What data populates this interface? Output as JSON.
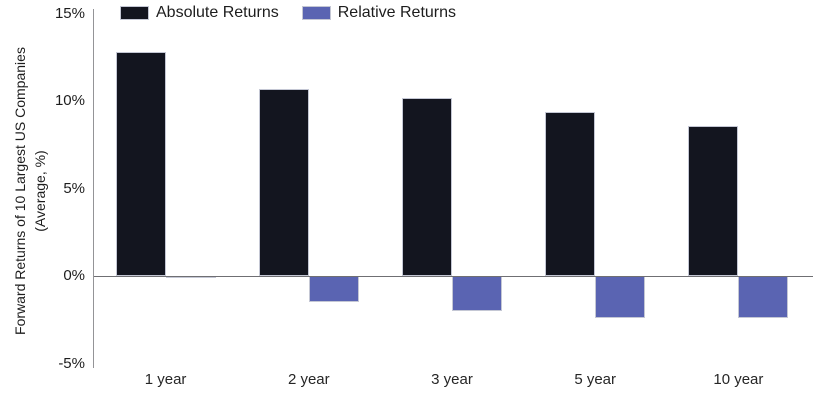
{
  "chart_data": {
    "type": "bar",
    "title": "",
    "categories": [
      "1 year",
      "2 year",
      "3 year",
      "5 year",
      "10 year"
    ],
    "series": [
      {
        "name": "Absolute Returns",
        "color": "#13151f",
        "values": [
          12.8,
          10.7,
          10.2,
          9.4,
          8.6
        ]
      },
      {
        "name": "Relative Returns",
        "color": "#5a64b2",
        "values": [
          -0.1,
          -1.5,
          -2.0,
          -2.4,
          -2.4
        ]
      }
    ],
    "xlabel": "",
    "ylabel": "Forward Returns of 10 Largest US Companies (Average, %)",
    "ylabel_lines": [
      "Forward Returns of 10 Largest US Companies",
      "(Average, %)"
    ],
    "ylim": [
      -5,
      15
    ],
    "yticks": [
      {
        "value": 15,
        "label": "15%"
      },
      {
        "value": 10,
        "label": "10%"
      },
      {
        "value": 5,
        "label": "5%"
      },
      {
        "value": 0,
        "label": "0%"
      },
      {
        "value": -5,
        "label": "-5%"
      }
    ],
    "grid": false,
    "legend_position": "top-left"
  },
  "colors": {
    "absolute_bar": "#13151f",
    "relative_bar": "#5a64b2",
    "bar_edge": "#c4c7d4",
    "axis_line": "#949497",
    "zero_line": "#6f6f73",
    "text": "#1d1d1d",
    "background": "#ffffff"
  }
}
